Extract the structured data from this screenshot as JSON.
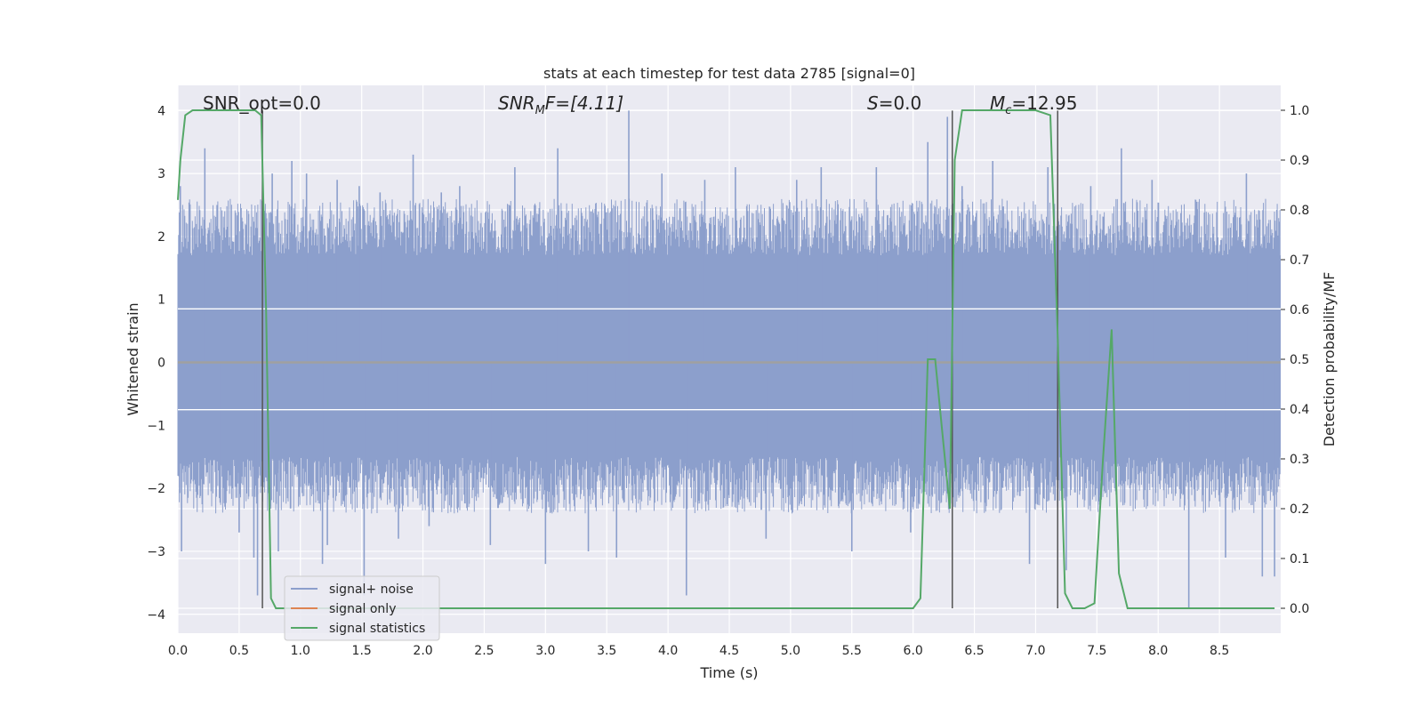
{
  "chart_data": {
    "type": "line",
    "title": "stats at each timestep for test data 2785 [signal=0]",
    "xlabel": "Time (s)",
    "ylabel_left": "Whitened strain",
    "ylabel_right": "Detection probability/MF",
    "xlim": [
      0,
      9
    ],
    "ylim_left": [
      -4.3,
      4.4
    ],
    "ylim_right": [
      -0.05,
      1.05
    ],
    "x_ticks": [
      "0.0",
      "0.5",
      "1.0",
      "1.5",
      "2.0",
      "2.5",
      "3.0",
      "3.5",
      "4.0",
      "4.5",
      "5.0",
      "5.5",
      "6.0",
      "6.5",
      "7.0",
      "7.5",
      "8.0",
      "8.5"
    ],
    "y_ticks_left": [
      "−4",
      "−3",
      "−2",
      "−1",
      "0",
      "1",
      "2",
      "3",
      "4"
    ],
    "y_ticks_right": [
      "0.0",
      "0.1",
      "0.2",
      "0.3",
      "0.4",
      "0.5",
      "0.6",
      "0.7",
      "0.8",
      "0.9",
      "1.0"
    ],
    "grid": true,
    "legend_placement": "lower-left",
    "colors": {
      "noise": "#8c9fcc",
      "signal_only": "#dd8452",
      "statistics": "#55a868",
      "marker": "#555555",
      "axes_bg": "#eaeaf2",
      "grid": "#ffffff"
    },
    "annotations": {
      "snr_opt": "SNR_opt=0.0",
      "snr_mf_base": "SNR",
      "snr_mf_sub": "M",
      "snr_mf_rest": "F=[4.11]",
      "s": "=0.0",
      "s_sym": "S",
      "mc_sym": "M",
      "mc_sub": "c",
      "mc_rest": "=12.95"
    },
    "series": [
      {
        "name": "signal+ noise",
        "kind": "noise_band",
        "core_lower": -1.5,
        "core_upper": 1.7,
        "x_range": [
          0,
          9.0
        ],
        "spikes": [
          [
            0.02,
            2.8
          ],
          [
            0.03,
            -3.0
          ],
          [
            0.22,
            3.4
          ],
          [
            0.32,
            2.5
          ],
          [
            0.34,
            -2.0
          ],
          [
            0.5,
            -2.7
          ],
          [
            0.62,
            -3.1
          ],
          [
            0.65,
            -3.7
          ],
          [
            0.77,
            3.0
          ],
          [
            0.82,
            -3.0
          ],
          [
            0.93,
            3.2
          ],
          [
            1.05,
            3.0
          ],
          [
            1.18,
            -3.2
          ],
          [
            1.22,
            -2.9
          ],
          [
            1.3,
            2.9
          ],
          [
            1.48,
            2.8
          ],
          [
            1.52,
            -3.7
          ],
          [
            1.65,
            2.7
          ],
          [
            1.8,
            -2.8
          ],
          [
            1.92,
            3.3
          ],
          [
            2.05,
            -2.6
          ],
          [
            2.15,
            2.7
          ],
          [
            2.3,
            2.8
          ],
          [
            2.55,
            -2.9
          ],
          [
            2.75,
            3.1
          ],
          [
            3.0,
            -3.2
          ],
          [
            3.1,
            3.4
          ],
          [
            3.35,
            -3.0
          ],
          [
            3.58,
            -3.1
          ],
          [
            3.68,
            4.0
          ],
          [
            3.95,
            3.0
          ],
          [
            4.15,
            -3.7
          ],
          [
            4.3,
            2.9
          ],
          [
            4.55,
            3.1
          ],
          [
            4.8,
            -2.8
          ],
          [
            5.05,
            2.9
          ],
          [
            5.25,
            3.1
          ],
          [
            5.5,
            -3.0
          ],
          [
            5.7,
            3.1
          ],
          [
            5.98,
            -2.7
          ],
          [
            6.12,
            3.5
          ],
          [
            6.28,
            3.9
          ],
          [
            6.4,
            2.8
          ],
          [
            6.65,
            3.2
          ],
          [
            6.95,
            -3.2
          ],
          [
            7.1,
            3.1
          ],
          [
            7.25,
            -3.3
          ],
          [
            7.45,
            2.8
          ],
          [
            7.7,
            3.4
          ],
          [
            7.95,
            2.9
          ],
          [
            8.25,
            -3.9
          ],
          [
            8.55,
            -3.1
          ],
          [
            8.72,
            3.0
          ],
          [
            8.85,
            -3.4
          ],
          [
            8.95,
            -3.4
          ]
        ]
      },
      {
        "name": "signal only",
        "kind": "line_left_axis",
        "x": [
          0,
          9.0
        ],
        "y": [
          0,
          0
        ]
      },
      {
        "name": "signal statistics",
        "kind": "line_right_axis",
        "x": [
          0.0,
          0.02,
          0.06,
          0.12,
          0.5,
          0.63,
          0.68,
          0.72,
          0.76,
          0.8,
          1.0,
          2.0,
          3.0,
          4.0,
          5.0,
          5.5,
          6.0,
          6.06,
          6.12,
          6.18,
          6.24,
          6.3,
          6.34,
          6.4,
          6.45,
          6.55,
          6.7,
          7.0,
          7.12,
          7.18,
          7.24,
          7.3,
          7.4,
          7.48,
          7.55,
          7.62,
          7.68,
          7.75,
          7.8,
          8.0,
          8.5,
          8.95
        ],
        "y": [
          0.82,
          0.9,
          0.99,
          1.0,
          1.0,
          1.0,
          0.99,
          0.6,
          0.02,
          0.0,
          0.0,
          0.0,
          0.0,
          0.0,
          0.0,
          0.0,
          0.0,
          0.02,
          0.5,
          0.5,
          0.35,
          0.2,
          0.9,
          1.0,
          1.0,
          1.0,
          1.0,
          1.0,
          0.99,
          0.55,
          0.03,
          0.0,
          0.0,
          0.01,
          0.3,
          0.56,
          0.07,
          0.0,
          0.0,
          0.0,
          0.0,
          0.0
        ]
      }
    ],
    "marker_lines_x": [
      0.69,
      6.32,
      7.18
    ],
    "hlines_left": [
      0.85,
      -0.75
    ]
  }
}
